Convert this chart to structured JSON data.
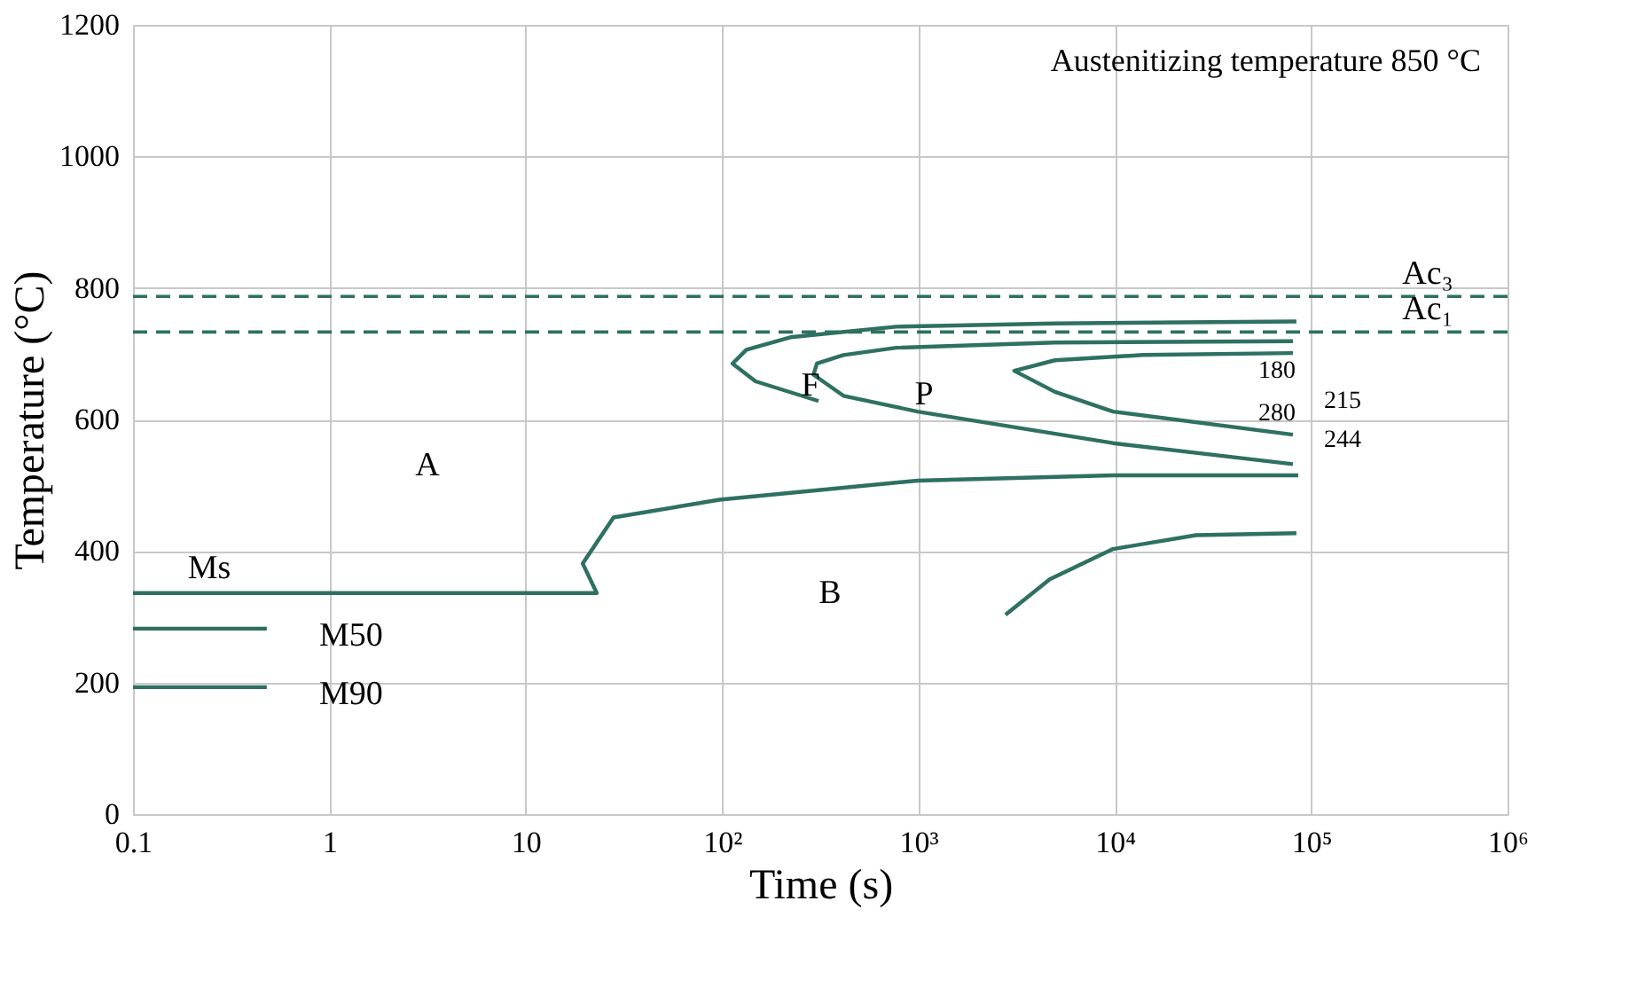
{
  "chart_data": {
    "type": "line",
    "xlabel": "Time (s)",
    "ylabel": "Temperature (°C)",
    "log": "x",
    "xlim": [
      0.1,
      1000000
    ],
    "xticks": [
      0.1,
      1,
      10,
      {
        "value": 100,
        "label": "10²"
      },
      {
        "value": 1000,
        "label": "10³"
      },
      {
        "value": 10000,
        "label": "10⁴"
      },
      {
        "value": 100000,
        "label": "10⁵"
      },
      {
        "value": 1000000,
        "label": "10⁶"
      }
    ],
    "ylim": [
      0,
      1200
    ],
    "yticks": [
      0,
      200,
      400,
      600,
      800,
      1000,
      1200
    ],
    "grid": true,
    "marker": "none",
    "line_style": "solid",
    "series": [
      {
        "color": "#2e7062",
        "x": [
          84100,
          4955,
          771,
          223,
          133,
          113,
          148,
          310
        ],
        "values": [
          749,
          746,
          741,
          725,
          706,
          685,
          658,
          628
        ]
      },
      {
        "color": "#2e7062",
        "x": [
          80700,
          4955,
          771,
          415,
          304,
          292,
          415,
          989,
          9800,
          80700
        ],
        "values": [
          719,
          717,
          709,
          698,
          685,
          668,
          636,
          612,
          564,
          532
        ]
      },
      {
        "color": "#2e7062",
        "x": [
          80700,
          13900,
          4955,
          3076,
          4955,
          9800,
          80700
        ],
        "values": [
          701,
          698,
          690,
          674,
          642,
          612,
          577
        ]
      },
      {
        "color": "#2e7062",
        "x": [
          0.1,
          23,
          19.5,
          19.9,
          28,
          97,
          989,
          9800,
          85900
        ],
        "values": [
          336,
          336,
          381,
          385,
          451,
          478,
          507,
          515,
          515
        ]
      },
      {
        "color": "#2e7062",
        "x": [
          2775,
          4660,
          9800,
          25900,
          84100
        ],
        "values": [
          303,
          357,
          403,
          424,
          427
        ]
      },
      {
        "color": "#2e7062",
        "x": [
          0.1,
          0.48
        ],
        "values": [
          282,
          282
        ]
      },
      {
        "color": "#2e7062",
        "x": [
          0.1,
          0.48
        ],
        "values": [
          193,
          193
        ]
      }
    ],
    "ref_lines": [
      {
        "axis": "y",
        "value": 787,
        "label": "Ac₃",
        "color": "#2e7062",
        "line_style": "dashed"
      },
      {
        "axis": "y",
        "value": 733,
        "label": "Ac₁",
        "color": "#2e7062",
        "line_style": "dashed"
      }
    ],
    "annotations": [
      "Austenitizing temperature 850 °C",
      "A",
      "F",
      "P",
      "B",
      "180",
      "280",
      "215",
      "244",
      "Ms",
      "M50",
      "M90"
    ]
  }
}
